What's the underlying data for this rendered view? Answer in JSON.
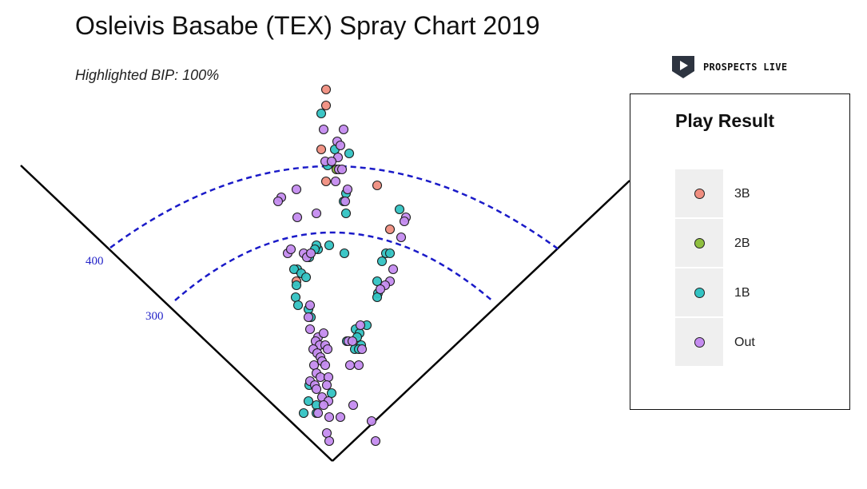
{
  "header": {
    "title": "Osleivis Basabe (TEX) Spray Chart 2019",
    "subtitle": "Highlighted BIP: 100%"
  },
  "brand": {
    "name": "PROSPECTS LIVE",
    "icon": "play-shield-icon"
  },
  "legend": {
    "title": "Play Result",
    "items": [
      {
        "label": "3B",
        "color": "#f08e80"
      },
      {
        "label": "2B",
        "color": "#8fbf3f"
      },
      {
        "label": "1B",
        "color": "#33c3c3"
      },
      {
        "label": "Out",
        "color": "#c58cf0"
      }
    ]
  },
  "chart_data": {
    "type": "scatter",
    "title": "Osleivis Basabe (TEX) Spray Chart 2019",
    "subtitle": "Highlighted BIP: 100%",
    "distance_labels": [
      "300",
      "400"
    ],
    "distance_arcs_ft": [
      300,
      400
    ],
    "legend_title": "Play Result",
    "legend_placement": "right",
    "grid": false,
    "series": [
      {
        "name": "3B",
        "color": "#f08e80",
        "points": [
          [
            -0.8,
            0.93
          ],
          [
            -0.8,
            0.89
          ],
          [
            -1.4,
            0.78
          ],
          [
            -0.8,
            0.7
          ],
          [
            5.6,
            0.69
          ],
          [
            7.2,
            0.58
          ],
          [
            -4.5,
            0.45
          ]
        ]
      },
      {
        "name": "2B",
        "color": "#8fbf3f",
        "points": [
          [
            0.5,
            0.73
          ]
        ]
      },
      {
        "name": "1B",
        "color": "#33c3c3",
        "points": [
          [
            -1.4,
            0.87
          ],
          [
            0.3,
            0.78
          ],
          [
            2.1,
            0.77
          ],
          [
            -0.6,
            0.74
          ],
          [
            1.7,
            0.67
          ],
          [
            8.4,
            0.63
          ],
          [
            1.4,
            0.65
          ],
          [
            1.7,
            0.62
          ],
          [
            -0.4,
            0.54
          ],
          [
            -1.8,
            0.53
          ],
          [
            -2.0,
            0.54
          ],
          [
            -2.2,
            0.53
          ],
          [
            1.5,
            0.52
          ],
          [
            -2.9,
            0.51
          ],
          [
            6.7,
            0.52
          ],
          [
            7.2,
            0.52
          ],
          [
            6.2,
            0.5
          ],
          [
            -4.4,
            0.48
          ],
          [
            -4.8,
            0.48
          ],
          [
            -3.9,
            0.47
          ],
          [
            -3.3,
            0.46
          ],
          [
            -4.5,
            0.44
          ],
          [
            5.6,
            0.45
          ],
          [
            5.7,
            0.42
          ],
          [
            5.6,
            0.41
          ],
          [
            -4.6,
            0.41
          ],
          [
            -4.3,
            0.39
          ],
          [
            -3.0,
            0.38
          ],
          [
            -2.7,
            0.36
          ],
          [
            4.3,
            0.34
          ],
          [
            2.9,
            0.33
          ],
          [
            3.4,
            0.32
          ],
          [
            3.1,
            0.31
          ],
          [
            1.8,
            0.3
          ],
          [
            3.6,
            0.29
          ],
          [
            2.8,
            0.28
          ],
          [
            3.3,
            0.28
          ],
          [
            -2.9,
            0.19
          ],
          [
            -0.1,
            0.17
          ],
          [
            -3.0,
            0.15
          ],
          [
            -2.0,
            0.14
          ],
          [
            -3.6,
            0.12
          ],
          [
            -2.0,
            0.12
          ]
        ]
      },
      {
        "name": "Out",
        "color": "#c58cf0",
        "points": [
          [
            1.4,
            0.83
          ],
          [
            -1.1,
            0.83
          ],
          [
            0.6,
            0.8
          ],
          [
            1.0,
            0.79
          ],
          [
            0.7,
            0.76
          ],
          [
            -0.9,
            0.75
          ],
          [
            -0.1,
            0.75
          ],
          [
            0.8,
            0.73
          ],
          [
            1.2,
            0.73
          ],
          [
            0.4,
            0.7
          ],
          [
            1.9,
            0.68
          ],
          [
            -6.4,
            0.66
          ],
          [
            -6.8,
            0.65
          ],
          [
            -4.5,
            0.68
          ],
          [
            1.6,
            0.65
          ],
          [
            -4.4,
            0.61
          ],
          [
            9.2,
            0.61
          ],
          [
            9.0,
            0.6
          ],
          [
            8.6,
            0.56
          ],
          [
            -2.0,
            0.62
          ],
          [
            -5.6,
            0.52
          ],
          [
            -5.2,
            0.53
          ],
          [
            -3.6,
            0.52
          ],
          [
            -3.2,
            0.51
          ],
          [
            -2.7,
            0.52
          ],
          [
            7.6,
            0.48
          ],
          [
            7.2,
            0.45
          ],
          [
            6.6,
            0.44
          ],
          [
            6.0,
            0.43
          ],
          [
            -2.8,
            0.39
          ],
          [
            -3.0,
            0.36
          ],
          [
            3.5,
            0.34
          ],
          [
            -2.8,
            0.33
          ],
          [
            -1.8,
            0.31
          ],
          [
            -2.1,
            0.3
          ],
          [
            -1.6,
            0.29
          ],
          [
            -0.9,
            0.29
          ],
          [
            -1.1,
            0.32
          ],
          [
            -2.4,
            0.28
          ],
          [
            -1.9,
            0.27
          ],
          [
            -1.5,
            0.26
          ],
          [
            -1.3,
            0.25
          ],
          [
            -0.6,
            0.28
          ],
          [
            -2.3,
            0.24
          ],
          [
            -2.0,
            0.22
          ],
          [
            -1.5,
            0.21
          ],
          [
            -0.9,
            0.24
          ],
          [
            -0.5,
            0.21
          ],
          [
            -2.8,
            0.2
          ],
          [
            -2.2,
            0.19
          ],
          [
            2.0,
            0.3
          ],
          [
            2.5,
            0.3
          ],
          [
            3.7,
            0.28
          ],
          [
            2.2,
            0.24
          ],
          [
            3.3,
            0.24
          ],
          [
            -0.7,
            0.19
          ],
          [
            -1.3,
            0.16
          ],
          [
            -0.5,
            0.15
          ],
          [
            -1.1,
            0.14
          ],
          [
            -2.0,
            0.18
          ],
          [
            -1.8,
            0.12
          ],
          [
            -0.4,
            0.11
          ],
          [
            1.0,
            0.11
          ],
          [
            2.6,
            0.14
          ],
          [
            4.9,
            0.1
          ],
          [
            -0.7,
            0.07
          ],
          [
            -0.4,
            0.05
          ],
          [
            5.4,
            0.05
          ]
        ]
      }
    ]
  }
}
